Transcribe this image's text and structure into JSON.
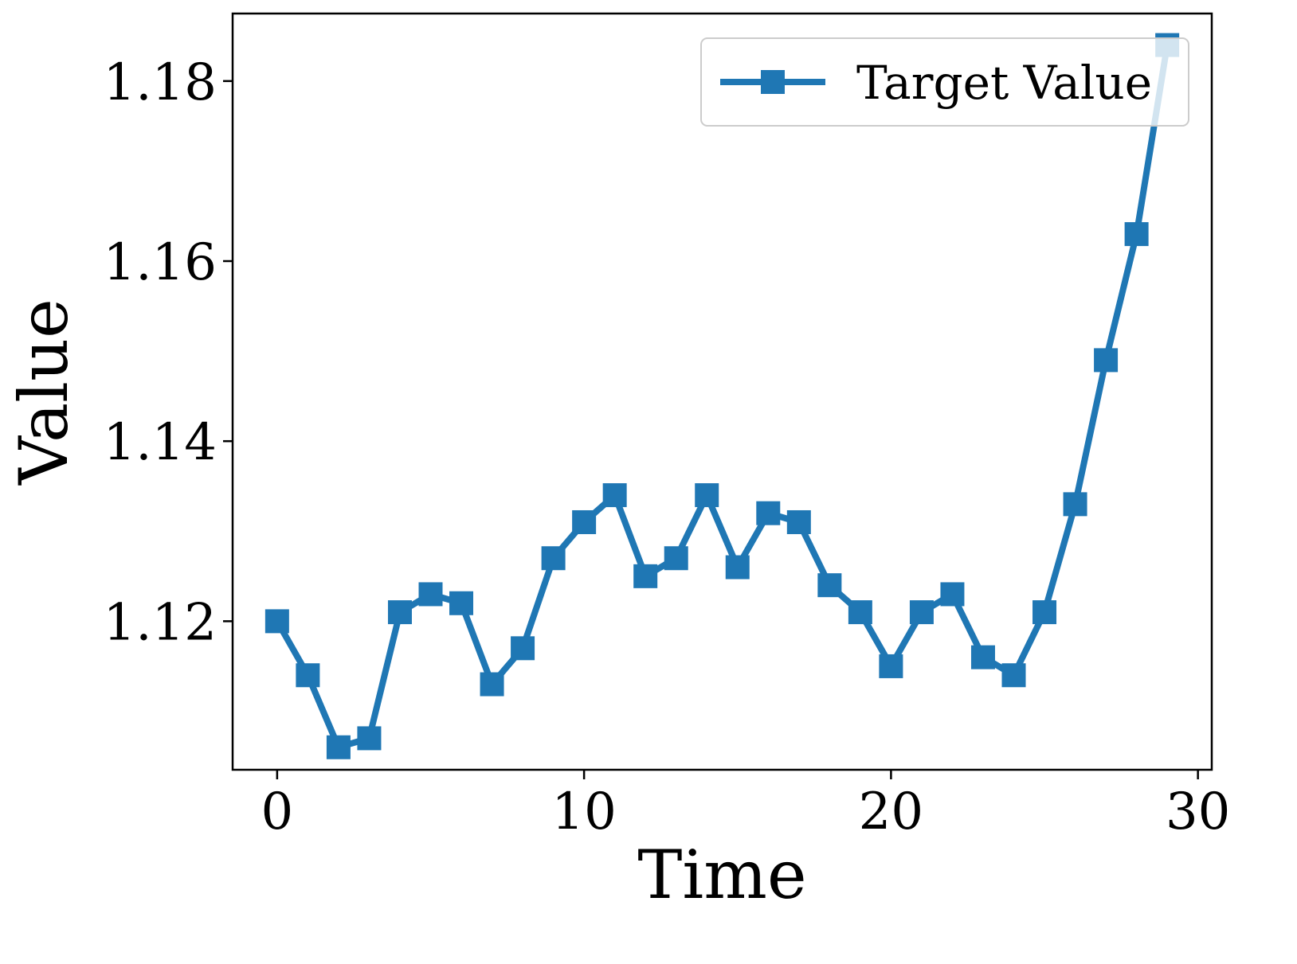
{
  "chart_data": {
    "type": "line",
    "title": "",
    "xlabel": "Time",
    "ylabel": "Value",
    "xlim": [
      -1.45,
      30.45
    ],
    "ylim": [
      1.1035,
      1.1875
    ],
    "xticks": [
      0,
      10,
      20,
      30
    ],
    "yticks": [
      1.12,
      1.14,
      1.16,
      1.18
    ],
    "ytick_labels": [
      "1.12",
      "1.14",
      "1.16",
      "1.18"
    ],
    "grid": false,
    "legend_position": "top-right",
    "series": [
      {
        "name": "Target Value",
        "color": "#1f77b4",
        "marker": "square",
        "x": [
          0,
          1,
          2,
          3,
          4,
          5,
          6,
          7,
          8,
          9,
          10,
          11,
          12,
          13,
          14,
          15,
          16,
          17,
          18,
          19,
          20,
          21,
          22,
          23,
          24,
          25,
          26,
          27,
          28,
          29
        ],
        "y": [
          1.12,
          1.114,
          1.106,
          1.107,
          1.121,
          1.123,
          1.122,
          1.113,
          1.117,
          1.127,
          1.131,
          1.134,
          1.125,
          1.127,
          1.134,
          1.126,
          1.132,
          1.131,
          1.124,
          1.121,
          1.115,
          1.121,
          1.123,
          1.116,
          1.114,
          1.121,
          1.133,
          1.149,
          1.163,
          1.184
        ]
      }
    ]
  }
}
